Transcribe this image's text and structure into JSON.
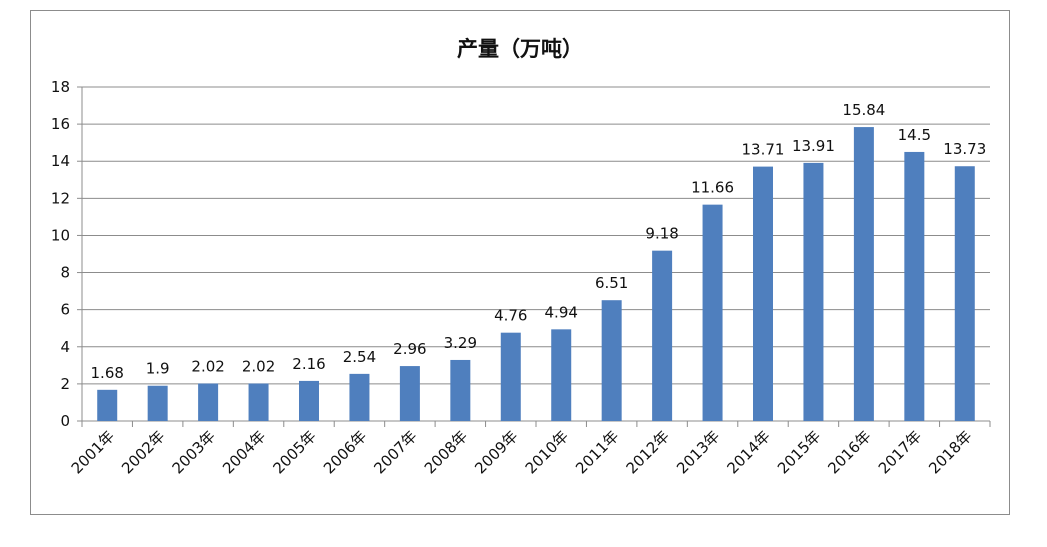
{
  "chart_data": {
    "type": "bar",
    "title": "产量（万吨）",
    "categories": [
      "2001年",
      "2002年",
      "2003年",
      "2004年",
      "2005年",
      "2006年",
      "2007年",
      "2008年",
      "2009年",
      "2010年",
      "2011年",
      "2012年",
      "2013年",
      "2014年",
      "2015年",
      "2016年",
      "2017年",
      "2018年"
    ],
    "values": [
      1.68,
      1.9,
      2.02,
      2.02,
      2.16,
      2.54,
      2.96,
      3.29,
      4.76,
      4.94,
      6.51,
      9.18,
      11.66,
      13.71,
      13.91,
      15.84,
      14.5,
      13.73
    ],
    "ylim": [
      0,
      18
    ],
    "yticks": [
      0,
      2,
      4,
      6,
      8,
      10,
      12,
      14,
      16,
      18
    ],
    "grid": true,
    "bar_color": "#4f7fbe",
    "legend": "none"
  }
}
